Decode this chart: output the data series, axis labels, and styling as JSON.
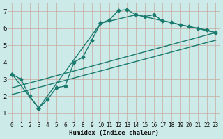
{
  "xlabel": "Humidex (Indice chaleur)",
  "bg_color": "#cceae8",
  "grid_color": "#b8d8d5",
  "line_color": "#1a7a6e",
  "xlim": [
    -0.5,
    23.5
  ],
  "ylim": [
    0.5,
    7.5
  ],
  "xticks": [
    0,
    1,
    2,
    3,
    4,
    5,
    6,
    7,
    8,
    9,
    10,
    11,
    12,
    13,
    14,
    15,
    16,
    17,
    18,
    19,
    20,
    21,
    22,
    23
  ],
  "yticks": [
    1,
    2,
    3,
    4,
    5,
    6,
    7
  ],
  "series1_x": [
    0,
    1,
    2,
    3,
    4,
    5,
    6,
    7,
    8,
    9,
    10,
    11,
    12,
    13,
    14,
    15,
    16,
    17,
    18,
    19,
    20,
    21,
    22,
    23
  ],
  "series1_y": [
    3.3,
    3.0,
    2.0,
    1.3,
    1.8,
    2.5,
    2.6,
    4.0,
    4.3,
    5.3,
    6.3,
    6.5,
    7.05,
    7.1,
    6.8,
    6.7,
    6.8,
    6.45,
    6.35,
    6.2,
    6.1,
    6.0,
    5.9,
    5.75
  ],
  "series2_x": [
    0,
    3,
    10,
    14,
    23
  ],
  "series2_y": [
    3.3,
    1.3,
    6.3,
    6.8,
    5.75
  ],
  "series3_x": [
    0,
    23
  ],
  "series3_y": [
    2.5,
    5.75
  ],
  "series4_x": [
    0,
    23
  ],
  "series4_y": [
    2.1,
    5.3
  ]
}
